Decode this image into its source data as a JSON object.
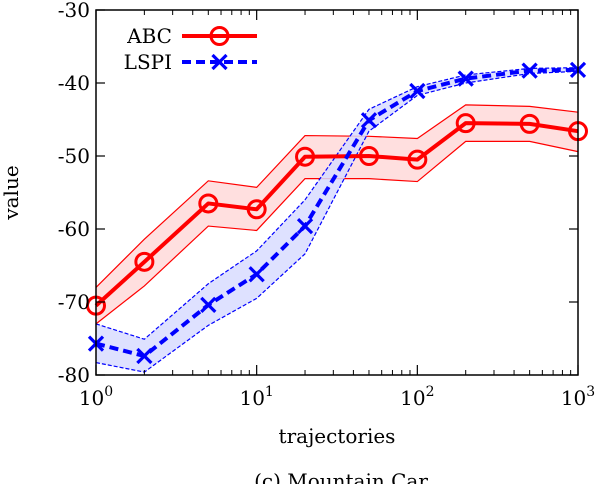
{
  "chart_data": {
    "type": "line",
    "xscale": "log",
    "xlabel": "trajectories",
    "ylabel": "value",
    "caption": "(c) Mountain Car",
    "xlim": [
      1,
      1000
    ],
    "ylim": [
      -80,
      -30
    ],
    "x_ticks": [
      {
        "value": 1,
        "base": "10",
        "exp": "0"
      },
      {
        "value": 10,
        "base": "10",
        "exp": "1"
      },
      {
        "value": 100,
        "base": "10",
        "exp": "2"
      },
      {
        "value": 1000,
        "base": "10",
        "exp": "3"
      }
    ],
    "y_ticks": [
      -80,
      -70,
      -60,
      -50,
      -40,
      -30
    ],
    "grid": false,
    "legend_position": "top-left",
    "series": [
      {
        "name": "ABC",
        "color": "#ff0000",
        "band_fill": "#ffd9d9",
        "marker": "circle",
        "line_style": "solid",
        "x": [
          1,
          2,
          5,
          10,
          20,
          50,
          100,
          200,
          500,
          1000
        ],
        "y": [
          -70.5,
          -64.5,
          -56.5,
          -57.3,
          -50.1,
          -50.0,
          -50.5,
          -45.5,
          -45.6,
          -46.6
        ],
        "lower": [
          -73.0,
          -67.8,
          -59.6,
          -60.2,
          -53.1,
          -53.1,
          -53.5,
          -48.0,
          -48.0,
          -49.4
        ],
        "upper": [
          -68.0,
          -61.4,
          -53.4,
          -54.3,
          -47.2,
          -47.3,
          -47.6,
          -43.0,
          -43.2,
          -44.0
        ]
      },
      {
        "name": "LSPI",
        "color": "#0000ff",
        "band_fill": "#d8dcff",
        "marker": "x",
        "line_style": "dashed",
        "x": [
          1,
          2,
          5,
          10,
          20,
          50,
          100,
          200,
          500,
          1000
        ],
        "y": [
          -75.7,
          -77.4,
          -70.4,
          -66.2,
          -59.6,
          -45.1,
          -41.1,
          -39.4,
          -38.3,
          -38.2
        ],
        "lower": [
          -78.3,
          -79.6,
          -73.2,
          -69.5,
          -63.4,
          -46.6,
          -41.7,
          -40.0,
          -38.7,
          -38.4
        ],
        "upper": [
          -73.0,
          -75.1,
          -67.5,
          -63.0,
          -56.0,
          -43.6,
          -40.5,
          -38.9,
          -38.0,
          -37.9
        ]
      }
    ]
  }
}
